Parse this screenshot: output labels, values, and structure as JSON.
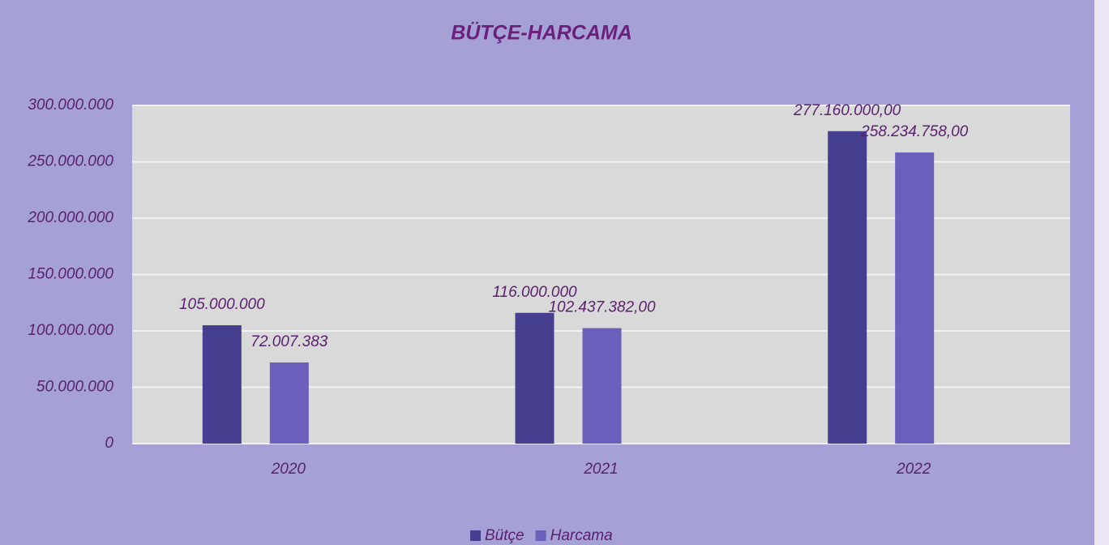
{
  "chart_data": {
    "type": "bar",
    "title": "BÜTÇE-HARCAMA",
    "categories": [
      "2020",
      "2021",
      "2022"
    ],
    "series": [
      {
        "name": "Bütçe",
        "color": "#463f8f",
        "values": [
          105000000,
          116000000,
          277160000
        ],
        "value_labels": [
          "105.000.000",
          "116.000.000",
          "277.160.000,00"
        ]
      },
      {
        "name": "Harcama",
        "color": "#6a5fbb",
        "values": [
          72007383,
          102437382,
          258234758
        ],
        "value_labels": [
          "72.007.383",
          "102.437.382,00",
          "258.234.758,00"
        ]
      }
    ],
    "ylim": [
      0,
      300000000
    ],
    "yticks": [
      0,
      {
        "value": 50000000,
        "label": "50.000.000"
      },
      {
        "value": 100000000,
        "label": "100.000.000"
      },
      {
        "value": 150000000,
        "label": "150.000.000"
      },
      {
        "value": 200000000,
        "label": "200.000.000"
      },
      {
        "value": 250000000,
        "label": "250.000.000"
      },
      {
        "value": 300000000,
        "label": "300.000.000"
      }
    ],
    "grid": true,
    "legend": "bottom"
  }
}
